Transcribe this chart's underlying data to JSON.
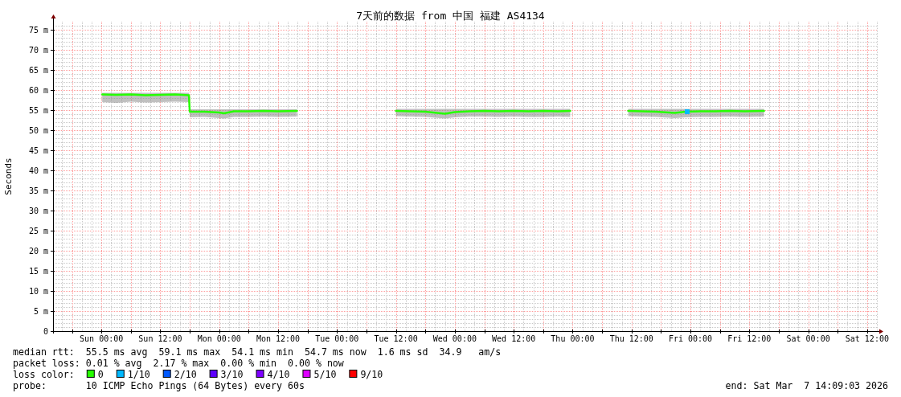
{
  "chart_data": {
    "type": "line",
    "title": "7天前的数据 from 中国 福建 AS4134",
    "ylabel": "Seconds",
    "legend_title": "loss color:",
    "legend": "bottom",
    "grid": true,
    "xlim": [
      "2026-02-28T14:09",
      "2026-03-07T14:09"
    ],
    "xticks": [
      {
        "value": "2026-02-28T18:00",
        "label": null
      },
      {
        "value": "2026-03-01T00:00",
        "label": "Sun 00:00"
      },
      {
        "value": "2026-03-01T06:00",
        "label": null
      },
      {
        "value": "2026-03-01T12:00",
        "label": "Sun 12:00"
      },
      {
        "value": "2026-03-01T18:00",
        "label": null
      },
      {
        "value": "2026-03-02T00:00",
        "label": "Mon 00:00"
      },
      {
        "value": "2026-03-02T06:00",
        "label": null
      },
      {
        "value": "2026-03-02T12:00",
        "label": "Mon 12:00"
      },
      {
        "value": "2026-03-02T18:00",
        "label": null
      },
      {
        "value": "2026-03-03T00:00",
        "label": "Tue 00:00"
      },
      {
        "value": "2026-03-03T06:00",
        "label": null
      },
      {
        "value": "2026-03-03T12:00",
        "label": "Tue 12:00"
      },
      {
        "value": "2026-03-03T18:00",
        "label": null
      },
      {
        "value": "2026-03-04T00:00",
        "label": "Wed 00:00"
      },
      {
        "value": "2026-03-04T06:00",
        "label": null
      },
      {
        "value": "2026-03-04T12:00",
        "label": "Wed 12:00"
      },
      {
        "value": "2026-03-04T18:00",
        "label": null
      },
      {
        "value": "2026-03-05T00:00",
        "label": "Thu 00:00"
      },
      {
        "value": "2026-03-05T06:00",
        "label": null
      },
      {
        "value": "2026-03-05T12:00",
        "label": "Thu 12:00"
      },
      {
        "value": "2026-03-05T18:00",
        "label": null
      },
      {
        "value": "2026-03-06T00:00",
        "label": "Fri 00:00"
      },
      {
        "value": "2026-03-06T06:00",
        "label": null
      },
      {
        "value": "2026-03-06T12:00",
        "label": "Fri 12:00"
      },
      {
        "value": "2026-03-06T18:00",
        "label": null
      },
      {
        "value": "2026-03-07T00:00",
        "label": "Sat 00:00"
      },
      {
        "value": "2026-03-07T06:00",
        "label": null
      },
      {
        "value": "2026-03-07T12:00",
        "label": "Sat 12:00"
      }
    ],
    "ylim": [
      0,
      77
    ],
    "yticks": [
      0,
      {
        "value": 5,
        "label": "5 m"
      },
      {
        "value": 10,
        "label": "10 m"
      },
      {
        "value": 15,
        "label": "15 m"
      },
      {
        "value": 20,
        "label": "20 m"
      },
      {
        "value": 25,
        "label": "25 m"
      },
      {
        "value": 30,
        "label": "30 m"
      },
      {
        "value": 35,
        "label": "35 m"
      },
      {
        "value": 40,
        "label": "40 m"
      },
      {
        "value": 45,
        "label": "45 m"
      },
      {
        "value": 50,
        "label": "50 m"
      },
      {
        "value": 55,
        "label": "55 m"
      },
      {
        "value": 60,
        "label": "60 m"
      },
      {
        "value": 65,
        "label": "65 m"
      },
      {
        "value": 70,
        "label": "70 m"
      },
      {
        "value": 75,
        "label": "75 m"
      }
    ],
    "series": [
      {
        "name": "0",
        "color": "#26ff00",
        "x": [
          "2026-03-01T00:10",
          "2026-03-01T03:00",
          "2026-03-01T06:00",
          "2026-03-01T09:00",
          "2026-03-01T12:00",
          "2026-03-01T15:00",
          "2026-03-01T17:50",
          "2026-03-01T18:00",
          "2026-03-01T21:00",
          "2026-03-02T00:00",
          "2026-03-02T01:00",
          "2026-03-02T03:00",
          "2026-03-02T06:00",
          "2026-03-02T09:00",
          "2026-03-02T12:00",
          "2026-03-02T15:50"
        ],
        "values": [
          58.9,
          58.8,
          58.9,
          58.7,
          58.8,
          58.9,
          58.7,
          54.6,
          54.6,
          54.4,
          54.2,
          54.7,
          54.7,
          54.8,
          54.7,
          54.8
        ],
        "lower": [
          57.0,
          56.8,
          57.1,
          56.9,
          57.0,
          57.1,
          57.0,
          53.2,
          53.3,
          53.0,
          52.9,
          53.3,
          53.3,
          53.4,
          53.3,
          53.4
        ],
        "upper": [
          59.3,
          59.3,
          59.3,
          59.3,
          59.3,
          59.3,
          59.3,
          55.2,
          55.2,
          55.2,
          55.2,
          55.2,
          55.2,
          55.2,
          55.2,
          55.2
        ]
      },
      {
        "color": "#26ff00",
        "x": [
          "2026-03-03T12:00",
          "2026-03-03T15:00",
          "2026-03-03T18:00",
          "2026-03-03T22:00",
          "2026-03-04T00:00",
          "2026-03-04T03:00",
          "2026-03-04T06:00",
          "2026-03-04T09:00",
          "2026-03-04T12:00",
          "2026-03-04T15:00",
          "2026-03-04T18:00",
          "2026-03-04T21:00",
          "2026-03-04T23:30"
        ],
        "values": [
          54.8,
          54.7,
          54.6,
          54.1,
          54.5,
          54.7,
          54.8,
          54.7,
          54.8,
          54.7,
          54.8,
          54.7,
          54.8
        ],
        "lower": [
          53.5,
          53.4,
          53.3,
          52.9,
          53.2,
          53.4,
          53.4,
          53.3,
          53.4,
          53.3,
          53.3,
          53.4,
          53.3
        ],
        "upper": [
          55.3,
          55.3,
          55.3,
          55.3,
          55.3,
          55.3,
          55.3,
          55.3,
          55.3,
          55.3,
          55.3,
          55.3,
          55.3
        ]
      },
      {
        "color": "#26ff00",
        "x": [
          "2026-03-05T11:20",
          "2026-03-05T14:00",
          "2026-03-05T17:00",
          "2026-03-05T20:50",
          "2026-03-05T23:00",
          "2026-03-06T02:00",
          "2026-03-06T05:00",
          "2026-03-06T08:00",
          "2026-03-06T11:00",
          "2026-03-06T15:00"
        ],
        "values": [
          54.8,
          54.7,
          54.6,
          54.3,
          54.6,
          54.7,
          54.7,
          54.8,
          54.7,
          54.8
        ],
        "lower": [
          53.5,
          53.4,
          53.3,
          53.0,
          53.2,
          53.3,
          53.3,
          53.4,
          53.3,
          53.4
        ],
        "upper": [
          55.3,
          55.3,
          55.3,
          55.3,
          55.3,
          55.3,
          55.3,
          55.3,
          55.3,
          55.3
        ]
      },
      {
        "name": "1/10",
        "color": "#00b8ff",
        "marker": "square",
        "x": [
          "2026-03-05T23:20"
        ],
        "values": [
          54.6
        ]
      },
      {
        "name": "2/10",
        "color": "#0059ff"
      },
      {
        "name": "3/10",
        "color": "#5e00ff"
      },
      {
        "name": "4/10",
        "color": "#7e00ff"
      },
      {
        "name": "5/10",
        "color": "#dd00ff"
      },
      {
        "name": "9/10",
        "color": "#ff0000"
      }
    ],
    "annotations": [
      "median rtt:  55.5 ms avg  59.1 ms max  54.1 ms min  54.7 ms now  1.6 ms sd  34.9   am/s",
      "packet loss: 0.01 % avg  2.17 % max  0.00 % min  0.00 % now",
      "probe:       10 ICMP Echo Pings (64 Bytes) every 60s",
      "end: Sat Mar  7 14:09:03 2026"
    ]
  }
}
